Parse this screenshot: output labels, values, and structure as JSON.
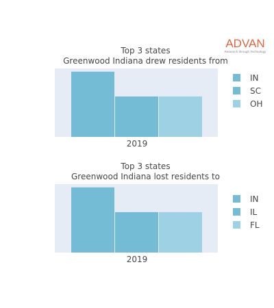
{
  "brand": {
    "name": "ADVAN",
    "tagline": "Research through Technology",
    "color": "#e0653d"
  },
  "chart_data": [
    {
      "type": "bar",
      "title_lines": [
        "Top 3 states",
        "Greenwood Indiana drew residents from"
      ],
      "categories": [
        "2019"
      ],
      "series": [
        {
          "name": "IN",
          "values": [
            1.0
          ],
          "color": "#74bcd6"
        },
        {
          "name": "SC",
          "values": [
            0.62
          ],
          "color": "#74bcd6"
        },
        {
          "name": "OH",
          "values": [
            0.62
          ],
          "color": "#9ed1e3"
        }
      ],
      "ylim": [
        0,
        1.05
      ],
      "legend": "right",
      "grid": false
    },
    {
      "type": "bar",
      "title_lines": [
        "Top 3 states",
        "Greenwood Indiana lost residents to"
      ],
      "categories": [
        "2019"
      ],
      "series": [
        {
          "name": "IN",
          "values": [
            1.0
          ],
          "color": "#74bcd6"
        },
        {
          "name": "IL",
          "values": [
            0.62
          ],
          "color": "#74bcd6"
        },
        {
          "name": "FL",
          "values": [
            0.62
          ],
          "color": "#9ed1e3"
        }
      ],
      "ylim": [
        0,
        1.05
      ],
      "legend": "right",
      "grid": false
    }
  ]
}
